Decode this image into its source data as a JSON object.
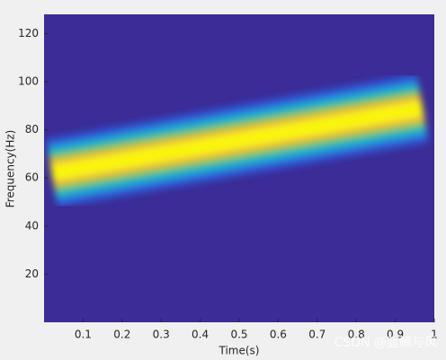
{
  "chart_data": {
    "type": "spectrogram",
    "xlabel": "Time(s)",
    "ylabel": "Frequency(Hz)",
    "x": [
      0.02,
      0.97
    ],
    "values": [
      62,
      89
    ],
    "background_color": "#3b2c97",
    "colors": [
      "#2f58d6",
      "#1aa6d8",
      "#29bba0",
      "#96c83c",
      "#f2b43a",
      "#f9f510"
    ],
    "xlim": [
      0,
      1
    ],
    "xticks": [
      0.1,
      0.2,
      0.3,
      0.4,
      0.5,
      0.6,
      0.7,
      0.8,
      0.9,
      1
    ],
    "ylim": [
      0,
      128
    ],
    "yticks": [
      20,
      40,
      60,
      80,
      100,
      120
    ],
    "watermark": "CSDN @蓝鲸与风"
  }
}
